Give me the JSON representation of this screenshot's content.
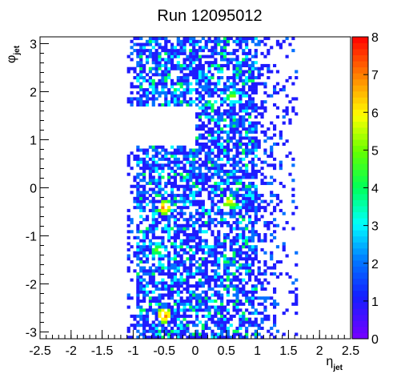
{
  "chart_data": {
    "type": "heatmap",
    "title": "Run 12095012",
    "xlabel": "η",
    "xlabel_sub": "jet",
    "ylabel": "φ",
    "ylabel_sub": "jet",
    "xlim": [
      -2.5,
      2.5
    ],
    "ylim": [
      -3.1416,
      3.1416
    ],
    "xticks": [
      -2.5,
      -2,
      -1.5,
      -1,
      -0.5,
      0,
      0.5,
      1,
      1.5,
      2,
      2.5
    ],
    "xtick_labels": [
      "-2.5",
      "-2",
      "-1.5",
      "-1",
      "-0.5",
      "0",
      "0.5",
      "1",
      "1.5",
      "2",
      "2.5"
    ],
    "yticks": [
      -3,
      -2,
      -1,
      0,
      1,
      2,
      3
    ],
    "ytick_labels": [
      "-3",
      "-2",
      "-1",
      "0",
      "1",
      "2",
      "3"
    ],
    "zlim": [
      0,
      8
    ],
    "colorbar_ticks": [
      0,
      1,
      2,
      3,
      4,
      5,
      6,
      7,
      8
    ],
    "colorbar_tick_labels": [
      "0",
      "1",
      "2",
      "3",
      "4",
      "5",
      "6",
      "7",
      "8"
    ],
    "colorbar_position": "right",
    "grid": false,
    "bins": {
      "nx": 100,
      "ny": 100
    },
    "occupied_region": {
      "eta_range": [
        -1.1,
        1.65
      ],
      "dense_eta_range": [
        -0.95,
        1.0
      ],
      "gap": {
        "eta_range": [
          -1.1,
          0.0
        ],
        "phi_range": [
          0.85,
          1.7
        ]
      }
    },
    "hot_spots": [
      {
        "eta": -0.5,
        "phi": -0.4,
        "value": 7
      },
      {
        "eta": -0.5,
        "phi": -2.65,
        "value": 7
      },
      {
        "eta": 0.55,
        "phi": -0.3,
        "value": 6
      },
      {
        "eta": -0.6,
        "phi": -1.3,
        "value": 5
      },
      {
        "eta": 0.6,
        "phi": 1.9,
        "value": 5
      }
    ]
  }
}
